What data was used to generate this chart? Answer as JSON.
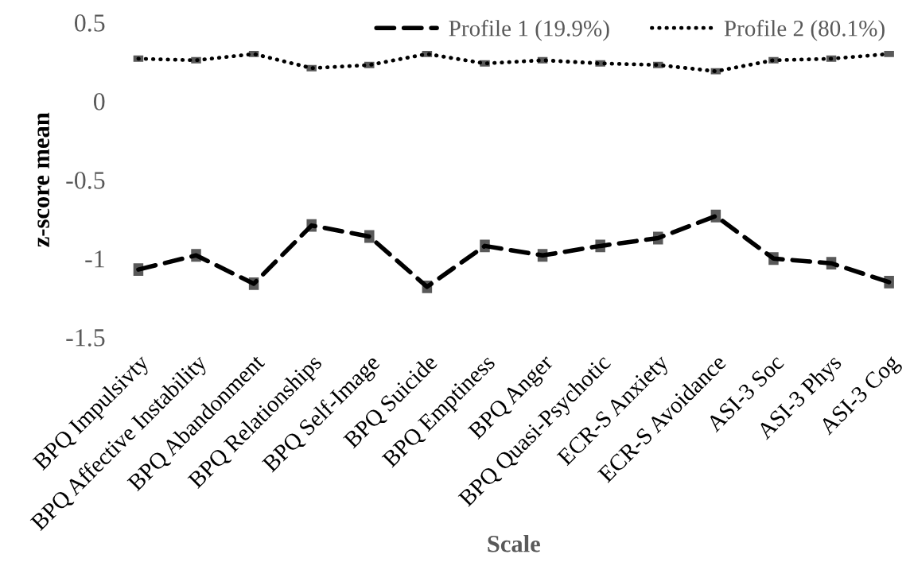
{
  "chart_data": {
    "type": "line",
    "xlabel": "Scale",
    "ylabel": "z-score mean",
    "categories": [
      "BPQ Impulsivty",
      "BPQ Affective Instability",
      "BPQ Abandonment",
      "BPQ Relationships",
      "BPQ Self-Image",
      "BPQ Suicide",
      "BPQ Emptiness",
      "BPQ Anger",
      "BPQ Quasi-Psychotic",
      "ECR-S Anxiety",
      "ECR-S Avoidance",
      "ASI-3 Soc",
      "ASI-3 Phys",
      "ASI-3 Cog"
    ],
    "series": [
      {
        "name": "Profile 1 (19.9%)",
        "color": "#000000",
        "line_style": "dashed",
        "values": [
          -1.07,
          -0.98,
          -1.16,
          -0.79,
          -0.86,
          -1.18,
          -0.92,
          -0.98,
          -0.92,
          -0.87,
          -0.73,
          -1.0,
          -1.03,
          -1.15
        ],
        "errors": [
          0.04,
          0.04,
          0.04,
          0.04,
          0.04,
          0.04,
          0.04,
          0.04,
          0.04,
          0.04,
          0.04,
          0.04,
          0.04,
          0.04
        ]
      },
      {
        "name": "Profile 2 (80.1%)",
        "color": "#000000",
        "line_style": "dotted",
        "values": [
          0.27,
          0.26,
          0.3,
          0.21,
          0.23,
          0.3,
          0.24,
          0.26,
          0.24,
          0.23,
          0.19,
          0.26,
          0.27,
          0.3
        ],
        "errors": [
          0.02,
          0.02,
          0.02,
          0.02,
          0.02,
          0.02,
          0.02,
          0.02,
          0.02,
          0.02,
          0.02,
          0.02,
          0.02,
          0.02
        ]
      }
    ],
    "ylim": [
      -1.5,
      0.5
    ],
    "yticks": [
      -1.5,
      -1,
      -0.5,
      0,
      0.5
    ],
    "grid": false,
    "legend": "top right",
    "marker": "none"
  }
}
